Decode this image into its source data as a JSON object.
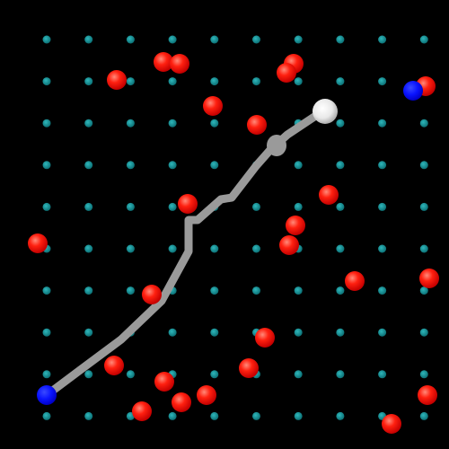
{
  "scene": {
    "background_color": "#000000",
    "grid_dot_color": "#0e8a8f",
    "grid_dot_highlight": "#2fb7bb",
    "enemy_color": "#ff1a0a",
    "enemy_highlight": "#ff7a6a",
    "trail_color": "#9a9a9a",
    "player_color": "#f2f2f2",
    "goal_color": "#0a1aff"
  },
  "grid": {
    "columns": 10,
    "rows": 10
  },
  "icons": {
    "player": "white-sphere-icon",
    "goal": "blue-sphere-icon",
    "enemy": "red-sphere-icon",
    "grid_node": "teal-dot-icon"
  }
}
